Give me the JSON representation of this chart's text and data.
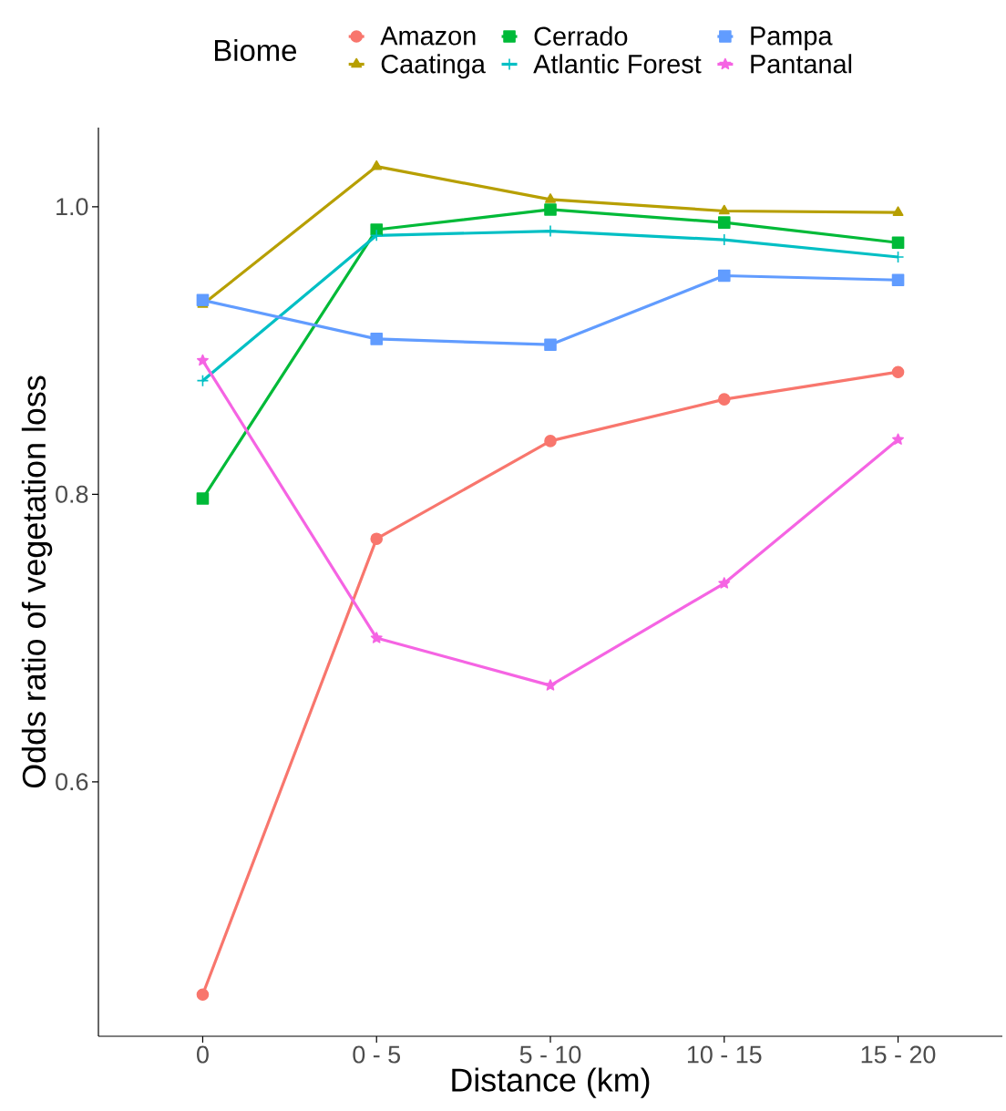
{
  "chart_data": {
    "type": "line",
    "xlabel": "Distance (km)",
    "ylabel": "Odds ratio of vegetation loss",
    "legend_title": "Biome",
    "legend": "top",
    "grid": false,
    "line_style": "solid",
    "categories": [
      "0",
      "0 - 5",
      "5 - 10",
      "10 - 15",
      "15 - 20"
    ],
    "ylim": [
      0.423,
      1.055
    ],
    "yticks": [
      {
        "value": 0.6,
        "label": "0.6"
      },
      {
        "value": 0.8,
        "label": "0.8"
      },
      {
        "value": 1.0,
        "label": "1.0"
      }
    ],
    "series": [
      {
        "name": "Amazon",
        "color": "#f8766d",
        "marker": "circle",
        "values": [
          0.452,
          0.769,
          0.837,
          0.866,
          0.885
        ]
      },
      {
        "name": "Caatinga",
        "color": "#b79f00",
        "marker": "triangle",
        "values": [
          0.932,
          1.028,
          1.005,
          0.997,
          0.996
        ]
      },
      {
        "name": "Cerrado",
        "color": "#00ba38",
        "marker": "square",
        "values": [
          0.797,
          0.984,
          0.998,
          0.989,
          0.975
        ]
      },
      {
        "name": "Atlantic Forest",
        "color": "#00bfc4",
        "marker": "cross",
        "values": [
          0.879,
          0.98,
          0.983,
          0.977,
          0.965
        ]
      },
      {
        "name": "Pampa",
        "color": "#619cff",
        "marker": "square",
        "values": [
          0.935,
          0.908,
          0.904,
          0.952,
          0.949
        ]
      },
      {
        "name": "Pantanal",
        "color": "#f564e3",
        "marker": "star",
        "values": [
          0.893,
          0.7,
          0.667,
          0.738,
          0.838
        ]
      }
    ]
  }
}
